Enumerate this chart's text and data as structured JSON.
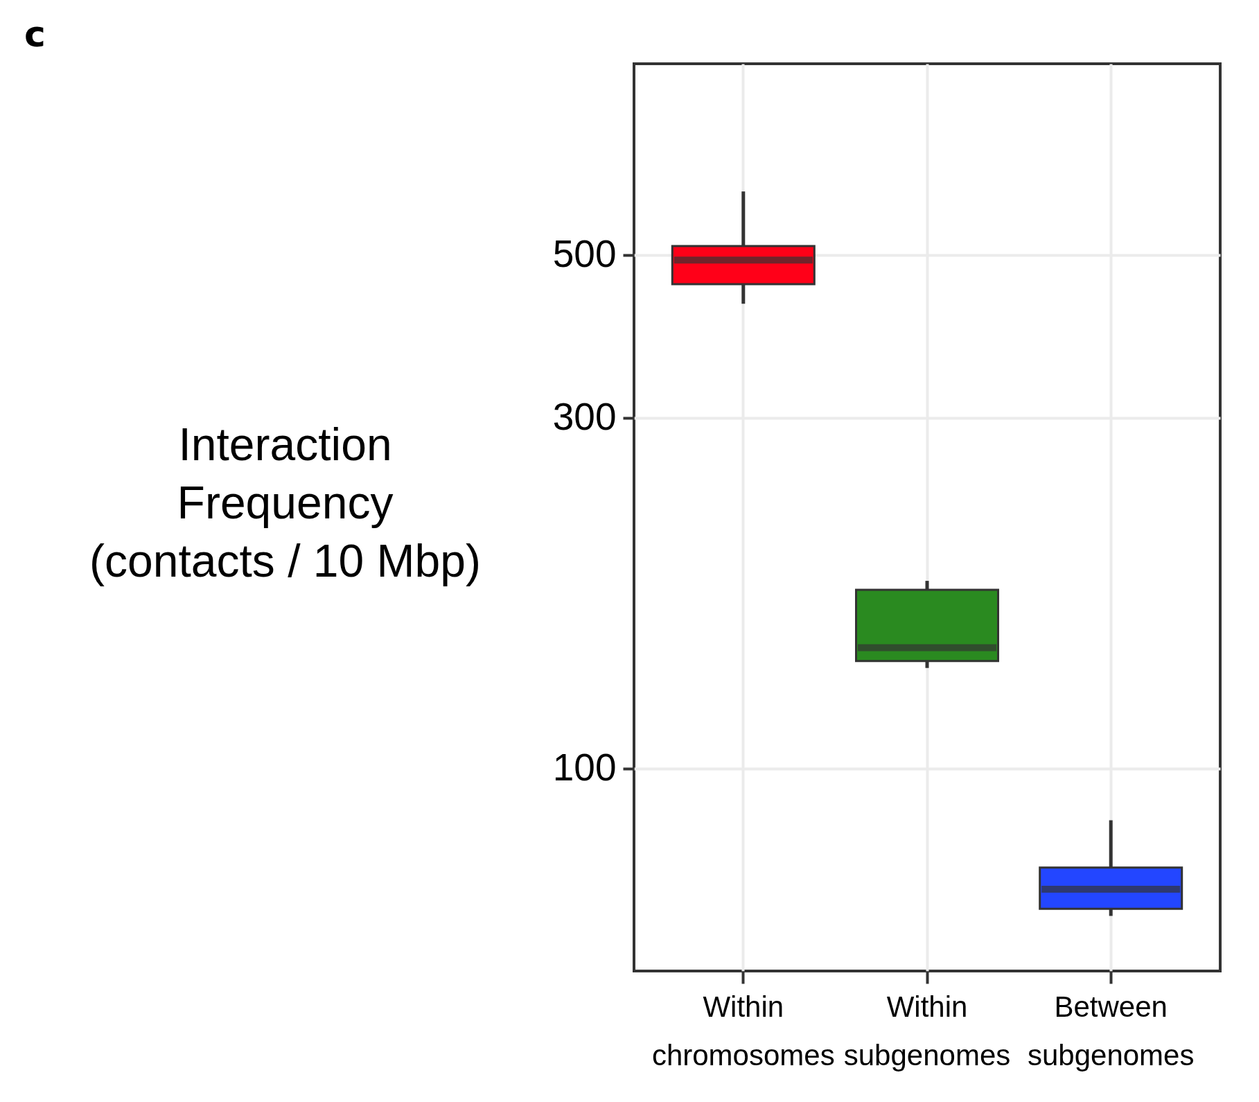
{
  "chart_data": {
    "type": "box",
    "ylabel": "Interaction Frequency (contacts / 10 Mbp)",
    "annotations": [
      "c"
    ],
    "categories": [
      "Within chromosomes",
      "Within subgenomes",
      "Between subgenomes"
    ],
    "colors": [
      "#ff0018",
      "#2a8a20",
      "#2346ff"
    ],
    "boxes": [
      {
        "low": 429,
        "q1": 456,
        "median": 492,
        "q3": 514,
        "high": 610
      },
      {
        "low": 137,
        "q1": 140,
        "median": 146,
        "q3": 175,
        "high": 180
      },
      {
        "low": 63,
        "q1": 64.4,
        "median": 68.5,
        "q3": 73.3,
        "high": 85
      }
    ],
    "log": true,
    "ylim": [
      53,
      910
    ],
    "yticks": [
      100,
      300,
      500
    ],
    "grid": true,
    "legend": false
  }
}
